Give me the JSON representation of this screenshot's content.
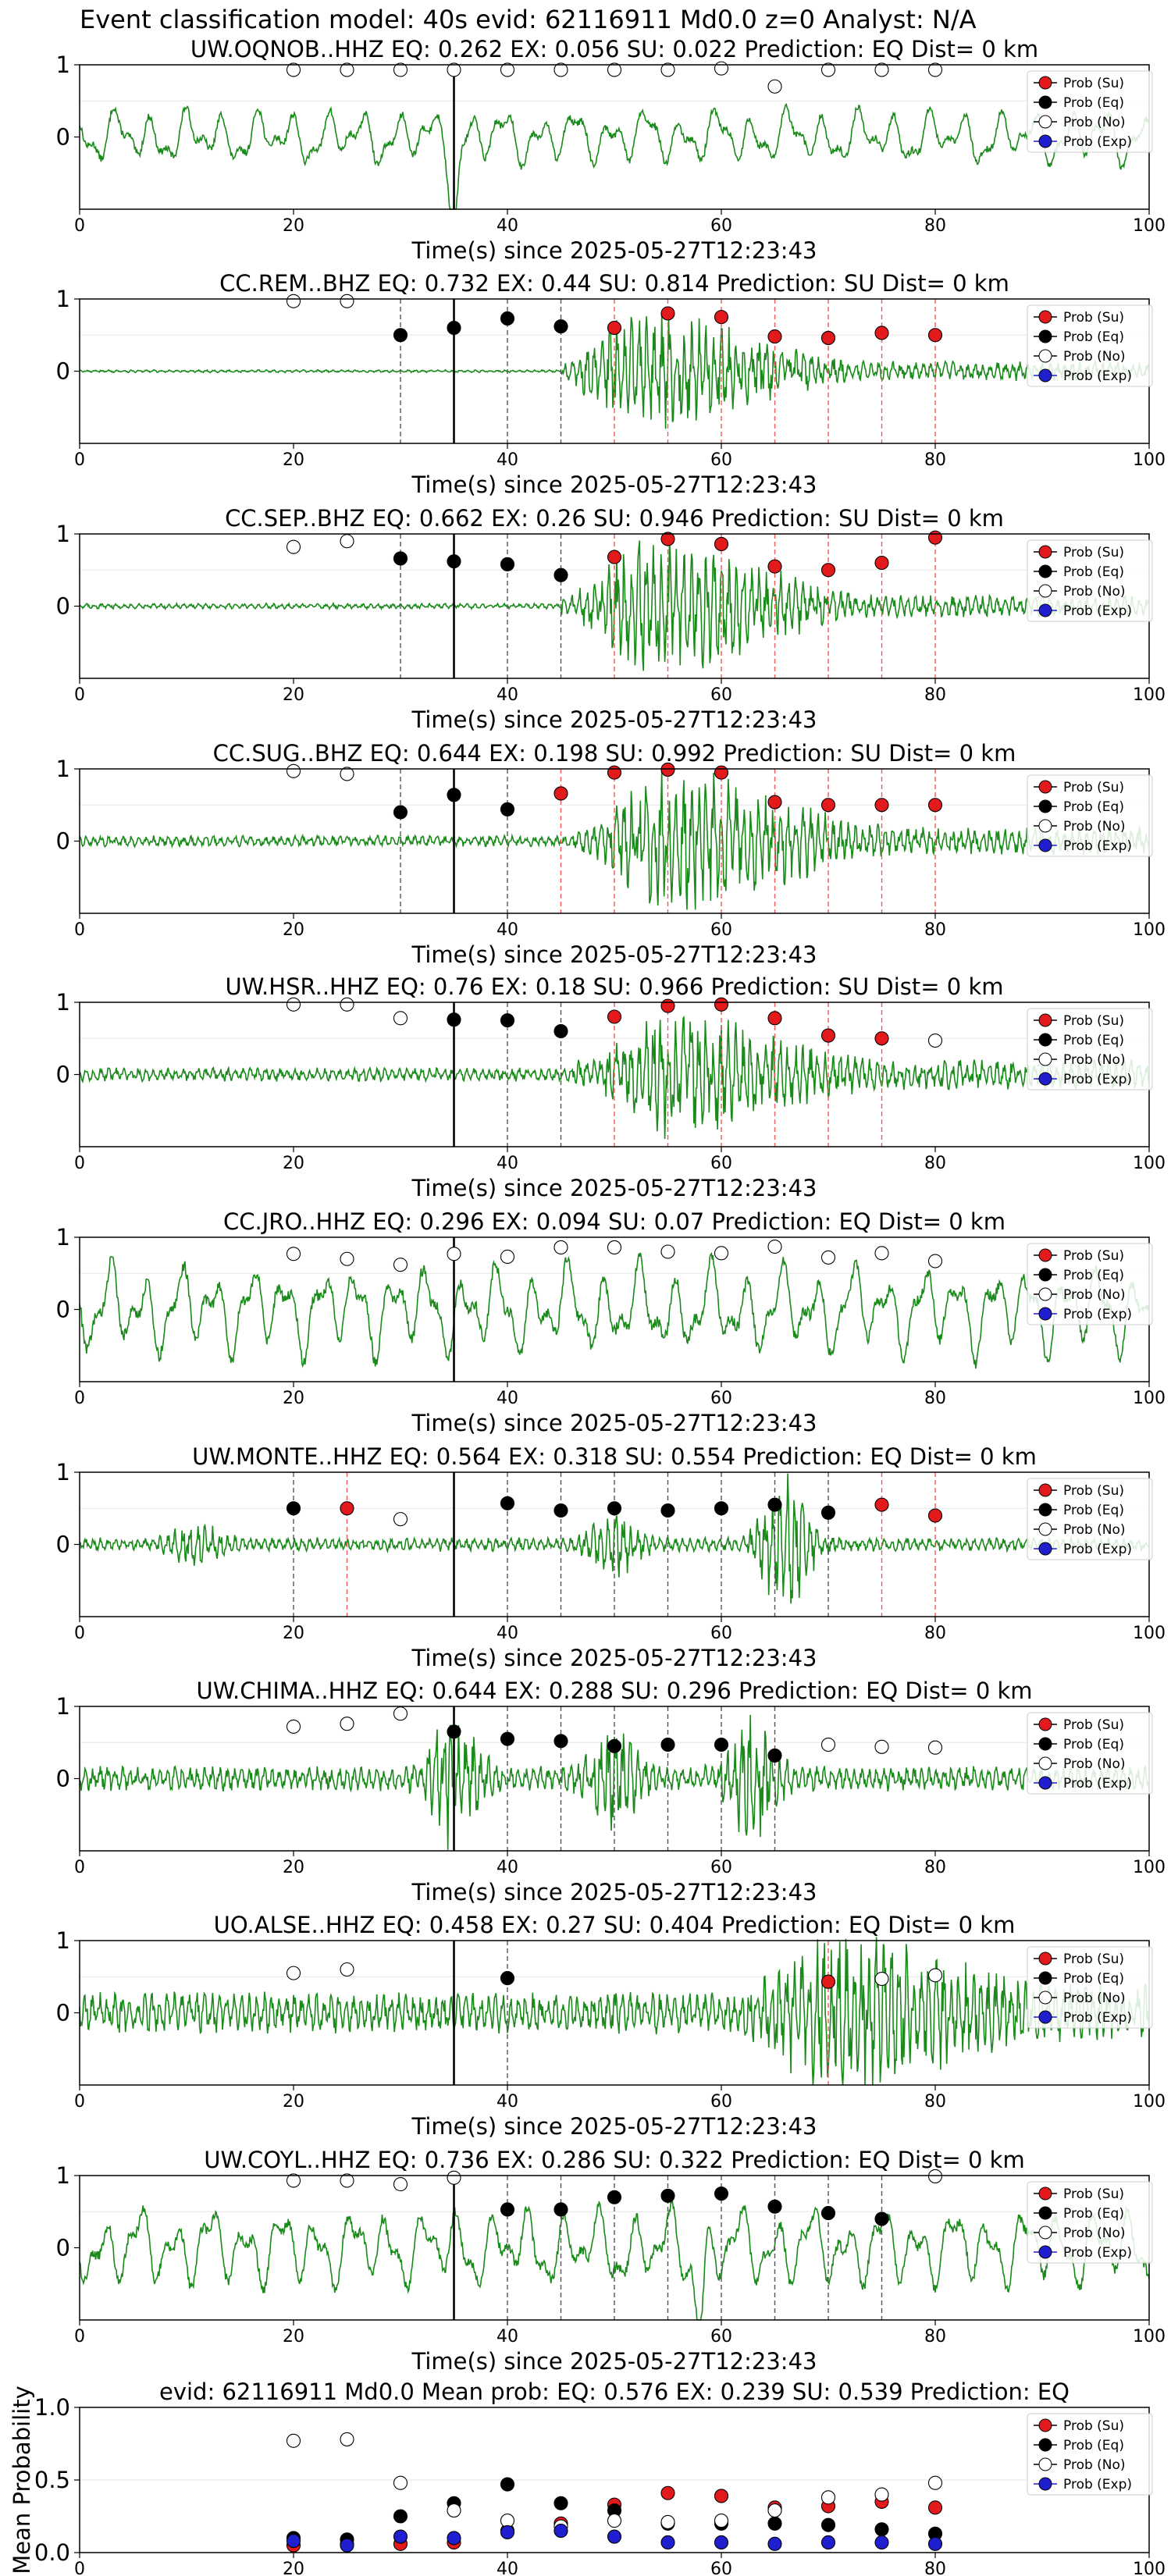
{
  "figure_title": "Event classification model: 40s evid: 62116911 Md0.0 z=0 Analyst: N/A",
  "xlabel": "Time(s) since 2025-05-27T12:23:43",
  "legend": [
    "Prob (Su)",
    "Prob (Eq)",
    "Prob (No)",
    "Prob (Exp)"
  ],
  "colors": {
    "su": "#e31a1c",
    "eq": "#000000",
    "no": "#ffffff",
    "exp": "#1f1fd0",
    "trace": "#1a8a1a",
    "su_line": "#ef5a5a",
    "eq_line": "#555555"
  },
  "chart_data": [
    {
      "type": "line",
      "title": "UW.OQNOB..HHZ   EQ: 0.262  EX: 0.056  SU: 0.022   Prediction: EQ    Dist= 0 km",
      "xlim": [
        0,
        100
      ],
      "ylim": [
        -1,
        1
      ],
      "xticks": [
        0,
        20,
        40,
        60,
        80,
        100
      ],
      "yticks": [
        0,
        1
      ],
      "arrival": 35,
      "trace": {
        "style": "wavy",
        "amp": 0.38,
        "spike": 35
      },
      "points": [
        {
          "x": 20,
          "y": 0.93,
          "class": "no"
        },
        {
          "x": 25,
          "y": 0.93,
          "class": "no"
        },
        {
          "x": 30,
          "y": 0.93,
          "class": "no"
        },
        {
          "x": 35,
          "y": 0.93,
          "class": "no"
        },
        {
          "x": 40,
          "y": 0.93,
          "class": "no"
        },
        {
          "x": 45,
          "y": 0.93,
          "class": "no"
        },
        {
          "x": 50,
          "y": 0.93,
          "class": "no"
        },
        {
          "x": 55,
          "y": 0.93,
          "class": "no"
        },
        {
          "x": 60,
          "y": 0.95,
          "class": "no"
        },
        {
          "x": 65,
          "y": 0.7,
          "class": "no"
        },
        {
          "x": 70,
          "y": 0.93,
          "class": "no"
        },
        {
          "x": 75,
          "y": 0.93,
          "class": "no"
        },
        {
          "x": 80,
          "y": 0.93,
          "class": "no"
        }
      ]
    },
    {
      "type": "line",
      "title": "CC.REM..BHZ   EQ: 0.732  EX: 0.44  SU: 0.814   Prediction: SU    Dist= 0 km",
      "xlim": [
        0,
        100
      ],
      "ylim": [
        -1,
        1
      ],
      "xticks": [
        0,
        20,
        40,
        60,
        80,
        100
      ],
      "yticks": [
        0,
        1
      ],
      "arrival": 35,
      "trace": {
        "style": "burst",
        "amp": 0.02,
        "onset": 45,
        "burst_amp": 0.85,
        "peak": 52
      },
      "points": [
        {
          "x": 20,
          "y": 0.97,
          "class": "no"
        },
        {
          "x": 25,
          "y": 0.97,
          "class": "no"
        },
        {
          "x": 30,
          "y": 0.5,
          "class": "eq"
        },
        {
          "x": 35,
          "y": 0.6,
          "class": "eq"
        },
        {
          "x": 40,
          "y": 0.73,
          "class": "eq"
        },
        {
          "x": 45,
          "y": 0.62,
          "class": "eq"
        },
        {
          "x": 50,
          "y": 0.6,
          "class": "su"
        },
        {
          "x": 55,
          "y": 0.8,
          "class": "su"
        },
        {
          "x": 60,
          "y": 0.75,
          "class": "su"
        },
        {
          "x": 65,
          "y": 0.48,
          "class": "su"
        },
        {
          "x": 70,
          "y": 0.46,
          "class": "su"
        },
        {
          "x": 75,
          "y": 0.53,
          "class": "su"
        },
        {
          "x": 80,
          "y": 0.5,
          "class": "su"
        }
      ]
    },
    {
      "type": "line",
      "title": "CC.SEP..BHZ   EQ: 0.662  EX: 0.26  SU: 0.946   Prediction: SU    Dist= 0 km",
      "xlim": [
        0,
        100
      ],
      "ylim": [
        -1,
        1
      ],
      "xticks": [
        0,
        20,
        40,
        60,
        80,
        100
      ],
      "yticks": [
        0,
        1
      ],
      "arrival": 35,
      "trace": {
        "style": "burst",
        "amp": 0.04,
        "onset": 45,
        "burst_amp": 0.95,
        "peak": 53
      },
      "points": [
        {
          "x": 20,
          "y": 0.82,
          "class": "no"
        },
        {
          "x": 25,
          "y": 0.9,
          "class": "no"
        },
        {
          "x": 30,
          "y": 0.66,
          "class": "eq"
        },
        {
          "x": 35,
          "y": 0.62,
          "class": "eq"
        },
        {
          "x": 40,
          "y": 0.58,
          "class": "eq"
        },
        {
          "x": 45,
          "y": 0.43,
          "class": "eq"
        },
        {
          "x": 50,
          "y": 0.68,
          "class": "su"
        },
        {
          "x": 55,
          "y": 0.93,
          "class": "su"
        },
        {
          "x": 60,
          "y": 0.86,
          "class": "su"
        },
        {
          "x": 65,
          "y": 0.55,
          "class": "su"
        },
        {
          "x": 70,
          "y": 0.5,
          "class": "su"
        },
        {
          "x": 75,
          "y": 0.6,
          "class": "su"
        },
        {
          "x": 80,
          "y": 0.95,
          "class": "su"
        }
      ]
    },
    {
      "type": "line",
      "title": "CC.SUG..BHZ   EQ: 0.644  EX: 0.198  SU: 0.992   Prediction: SU    Dist= 0 km",
      "xlim": [
        0,
        100
      ],
      "ylim": [
        -1,
        1
      ],
      "xticks": [
        0,
        20,
        40,
        60,
        80,
        100
      ],
      "yticks": [
        0,
        1
      ],
      "arrival": 35,
      "trace": {
        "style": "burst",
        "amp": 0.08,
        "onset": 46,
        "burst_amp": 0.95,
        "peak": 55
      },
      "points": [
        {
          "x": 20,
          "y": 0.97,
          "class": "no"
        },
        {
          "x": 25,
          "y": 0.93,
          "class": "no"
        },
        {
          "x": 30,
          "y": 0.4,
          "class": "eq"
        },
        {
          "x": 35,
          "y": 0.64,
          "class": "eq"
        },
        {
          "x": 40,
          "y": 0.44,
          "class": "eq"
        },
        {
          "x": 45,
          "y": 0.66,
          "class": "su"
        },
        {
          "x": 50,
          "y": 0.95,
          "class": "su"
        },
        {
          "x": 55,
          "y": 0.99,
          "class": "su"
        },
        {
          "x": 60,
          "y": 0.95,
          "class": "su"
        },
        {
          "x": 65,
          "y": 0.54,
          "class": "su"
        },
        {
          "x": 70,
          "y": 0.5,
          "class": "su"
        },
        {
          "x": 75,
          "y": 0.5,
          "class": "su"
        },
        {
          "x": 80,
          "y": 0.5,
          "class": "su"
        }
      ]
    },
    {
      "type": "line",
      "title": "UW.HSR..HHZ   EQ: 0.76  EX: 0.18  SU: 0.966   Prediction: SU    Dist= 0 km",
      "xlim": [
        0,
        100
      ],
      "ylim": [
        -1,
        1
      ],
      "xticks": [
        0,
        20,
        40,
        60,
        80,
        100
      ],
      "yticks": [
        0,
        1
      ],
      "arrival": 35,
      "trace": {
        "style": "burst",
        "amp": 0.1,
        "onset": 46,
        "burst_amp": 0.8,
        "peak": 55
      },
      "points": [
        {
          "x": 20,
          "y": 0.97,
          "class": "no"
        },
        {
          "x": 25,
          "y": 0.97,
          "class": "no"
        },
        {
          "x": 30,
          "y": 0.78,
          "class": "no"
        },
        {
          "x": 35,
          "y": 0.76,
          "class": "eq"
        },
        {
          "x": 40,
          "y": 0.75,
          "class": "eq"
        },
        {
          "x": 45,
          "y": 0.6,
          "class": "eq"
        },
        {
          "x": 50,
          "y": 0.8,
          "class": "su"
        },
        {
          "x": 55,
          "y": 0.95,
          "class": "su"
        },
        {
          "x": 60,
          "y": 0.97,
          "class": "su"
        },
        {
          "x": 65,
          "y": 0.78,
          "class": "su"
        },
        {
          "x": 70,
          "y": 0.54,
          "class": "su"
        },
        {
          "x": 75,
          "y": 0.5,
          "class": "su"
        },
        {
          "x": 80,
          "y": 0.47,
          "class": "no"
        }
      ]
    },
    {
      "type": "line",
      "title": "CC.JRO..HHZ   EQ: 0.296  EX: 0.094  SU: 0.07   Prediction: EQ    Dist= 0 km",
      "xlim": [
        0,
        100
      ],
      "ylim": [
        -1,
        1
      ],
      "xticks": [
        0,
        20,
        40,
        60,
        80,
        100
      ],
      "yticks": [
        0,
        1
      ],
      "arrival": 35,
      "trace": {
        "style": "wavy",
        "amp": 0.62
      },
      "points": [
        {
          "x": 20,
          "y": 0.77,
          "class": "no"
        },
        {
          "x": 25,
          "y": 0.7,
          "class": "no"
        },
        {
          "x": 30,
          "y": 0.62,
          "class": "no"
        },
        {
          "x": 35,
          "y": 0.77,
          "class": "no"
        },
        {
          "x": 40,
          "y": 0.73,
          "class": "no"
        },
        {
          "x": 45,
          "y": 0.86,
          "class": "no"
        },
        {
          "x": 50,
          "y": 0.86,
          "class": "no"
        },
        {
          "x": 55,
          "y": 0.8,
          "class": "no"
        },
        {
          "x": 60,
          "y": 0.78,
          "class": "no"
        },
        {
          "x": 65,
          "y": 0.87,
          "class": "no"
        },
        {
          "x": 70,
          "y": 0.72,
          "class": "no"
        },
        {
          "x": 75,
          "y": 0.78,
          "class": "no"
        },
        {
          "x": 80,
          "y": 0.67,
          "class": "no"
        }
      ]
    },
    {
      "type": "line",
      "title": "UW.MONTE..HHZ   EQ: 0.564  EX: 0.318  SU: 0.554   Prediction: EQ    Dist= 0 km",
      "xlim": [
        0,
        100
      ],
      "ylim": [
        -1,
        1
      ],
      "xticks": [
        0,
        20,
        40,
        60,
        80,
        100
      ],
      "yticks": [
        0,
        1
      ],
      "arrival": 35,
      "trace": {
        "style": "bursts",
        "amp": 0.1,
        "bursts": [
          [
            11,
            0.25
          ],
          [
            50,
            0.4
          ],
          [
            66,
            0.95
          ]
        ]
      },
      "points": [
        {
          "x": 20,
          "y": 0.5,
          "class": "eq"
        },
        {
          "x": 25,
          "y": 0.5,
          "class": "su"
        },
        {
          "x": 30,
          "y": 0.35,
          "class": "no"
        },
        {
          "x": 40,
          "y": 0.57,
          "class": "eq"
        },
        {
          "x": 45,
          "y": 0.47,
          "class": "eq"
        },
        {
          "x": 50,
          "y": 0.5,
          "class": "eq"
        },
        {
          "x": 55,
          "y": 0.47,
          "class": "eq"
        },
        {
          "x": 60,
          "y": 0.5,
          "class": "eq"
        },
        {
          "x": 65,
          "y": 0.55,
          "class": "eq"
        },
        {
          "x": 70,
          "y": 0.44,
          "class": "eq"
        },
        {
          "x": 75,
          "y": 0.55,
          "class": "su"
        },
        {
          "x": 80,
          "y": 0.4,
          "class": "su"
        }
      ]
    },
    {
      "type": "line",
      "title": "UW.CHIMA..HHZ   EQ: 0.644  EX: 0.288  SU: 0.296   Prediction: EQ    Dist= 0 km",
      "xlim": [
        0,
        100
      ],
      "ylim": [
        -1,
        1
      ],
      "xticks": [
        0,
        20,
        40,
        60,
        80,
        100
      ],
      "yticks": [
        0,
        1
      ],
      "arrival": 35,
      "trace": {
        "style": "bursts",
        "amp": 0.18,
        "bursts": [
          [
            35,
            0.95
          ],
          [
            50,
            0.6
          ],
          [
            63,
            0.8
          ]
        ]
      },
      "points": [
        {
          "x": 20,
          "y": 0.72,
          "class": "no"
        },
        {
          "x": 25,
          "y": 0.76,
          "class": "no"
        },
        {
          "x": 30,
          "y": 0.9,
          "class": "no"
        },
        {
          "x": 35,
          "y": 0.65,
          "class": "eq"
        },
        {
          "x": 40,
          "y": 0.55,
          "class": "eq"
        },
        {
          "x": 45,
          "y": 0.52,
          "class": "eq"
        },
        {
          "x": 50,
          "y": 0.45,
          "class": "eq"
        },
        {
          "x": 55,
          "y": 0.47,
          "class": "eq"
        },
        {
          "x": 60,
          "y": 0.47,
          "class": "eq"
        },
        {
          "x": 65,
          "y": 0.32,
          "class": "eq"
        },
        {
          "x": 70,
          "y": 0.47,
          "class": "no"
        },
        {
          "x": 75,
          "y": 0.44,
          "class": "no"
        },
        {
          "x": 80,
          "y": 0.43,
          "class": "no"
        }
      ]
    },
    {
      "type": "line",
      "title": "UO.ALSE..HHZ   EQ: 0.458  EX: 0.27  SU: 0.404   Prediction: EQ    Dist= 0 km",
      "xlim": [
        0,
        100
      ],
      "ylim": [
        -1,
        1
      ],
      "xticks": [
        0,
        20,
        40,
        60,
        80,
        100
      ],
      "yticks": [
        0,
        1
      ],
      "arrival": 35,
      "trace": {
        "style": "burst",
        "amp": 0.3,
        "onset": 62,
        "burst_amp": 0.9,
        "peak": 70
      },
      "points": [
        {
          "x": 20,
          "y": 0.55,
          "class": "no"
        },
        {
          "x": 25,
          "y": 0.6,
          "class": "no"
        },
        {
          "x": 40,
          "y": 0.48,
          "class": "eq"
        },
        {
          "x": 70,
          "y": 0.43,
          "class": "su"
        },
        {
          "x": 75,
          "y": 0.47,
          "class": "no"
        },
        {
          "x": 80,
          "y": 0.52,
          "class": "no"
        }
      ]
    },
    {
      "type": "line",
      "title": "UW.COYL..HHZ   EQ: 0.736  EX: 0.286  SU: 0.322   Prediction: EQ    Dist= 0 km",
      "xlim": [
        0,
        100
      ],
      "ylim": [
        -1,
        1
      ],
      "xticks": [
        0,
        20,
        40,
        60,
        80,
        100
      ],
      "yticks": [
        0,
        1
      ],
      "arrival": 35,
      "trace": {
        "style": "wavy",
        "amp": 0.55,
        "spike": 58
      },
      "points": [
        {
          "x": 20,
          "y": 0.93,
          "class": "no"
        },
        {
          "x": 25,
          "y": 0.93,
          "class": "no"
        },
        {
          "x": 30,
          "y": 0.88,
          "class": "no"
        },
        {
          "x": 35,
          "y": 0.97,
          "class": "no"
        },
        {
          "x": 40,
          "y": 0.53,
          "class": "eq"
        },
        {
          "x": 45,
          "y": 0.53,
          "class": "eq"
        },
        {
          "x": 50,
          "y": 0.7,
          "class": "eq"
        },
        {
          "x": 55,
          "y": 0.72,
          "class": "eq"
        },
        {
          "x": 60,
          "y": 0.75,
          "class": "eq"
        },
        {
          "x": 65,
          "y": 0.57,
          "class": "eq"
        },
        {
          "x": 70,
          "y": 0.48,
          "class": "eq"
        },
        {
          "x": 75,
          "y": 0.4,
          "class": "eq"
        },
        {
          "x": 80,
          "y": 0.99,
          "class": "no"
        }
      ]
    },
    {
      "type": "scatter",
      "title": "evid: 62116911  Md0.0   Mean prob:   EQ: 0.576  EX: 0.239  SU: 0.539   Prediction: EQ",
      "ylabel": "Mean Probability",
      "xlim": [
        0,
        100
      ],
      "ylim": [
        0,
        1
      ],
      "xticks": [
        0,
        20,
        40,
        60,
        80,
        100
      ],
      "yticks": [
        0.0,
        0.5,
        1.0
      ],
      "x": [
        20,
        25,
        30,
        35,
        40,
        45,
        50,
        55,
        60,
        65,
        70,
        75,
        80
      ],
      "series": [
        {
          "name": "Prob (Su)",
          "class": "su",
          "values": [
            0.05,
            0.06,
            0.06,
            0.07,
            0.15,
            0.2,
            0.33,
            0.41,
            0.39,
            0.31,
            0.32,
            0.35,
            0.31
          ]
        },
        {
          "name": "Prob (Eq)",
          "class": "eq",
          "values": [
            0.1,
            0.09,
            0.25,
            0.34,
            0.47,
            0.34,
            0.29,
            0.2,
            0.2,
            0.2,
            0.19,
            0.16,
            0.13
          ]
        },
        {
          "name": "Prob (No)",
          "class": "no",
          "values": [
            0.77,
            0.78,
            0.48,
            0.29,
            0.22,
            0.18,
            0.22,
            0.21,
            0.22,
            0.29,
            0.38,
            0.4,
            0.48
          ]
        },
        {
          "name": "Prob (Exp)",
          "class": "exp",
          "values": [
            0.08,
            0.05,
            0.11,
            0.1,
            0.14,
            0.15,
            0.11,
            0.07,
            0.07,
            0.06,
            0.07,
            0.07,
            0.06
          ]
        }
      ]
    }
  ]
}
